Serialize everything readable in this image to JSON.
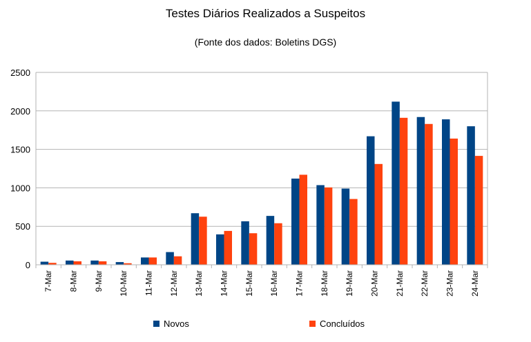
{
  "chart_data": {
    "type": "bar",
    "title": "Testes Diários Realizados a Suspeitos",
    "subtitle": "(Fonte dos dados: Boletins DGS)",
    "xlabel": "",
    "ylabel": "",
    "ylim": [
      0,
      2500
    ],
    "yticks": [
      0,
      500,
      1000,
      1500,
      2000,
      2500
    ],
    "grid": true,
    "legend_position": "bottom",
    "categories": [
      "7-Mar",
      "8-Mar",
      "9-Mar",
      "10-Mar",
      "11-Mar",
      "12-Mar",
      "13-Mar",
      "14-Mar",
      "15-Mar",
      "16-Mar",
      "17-Mar",
      "18-Mar",
      "19-Mar",
      "20-Mar",
      "21-Mar",
      "22-Mar",
      "23-Mar",
      "24-Mar"
    ],
    "series": [
      {
        "name": "Novos",
        "color": "#004586",
        "values": [
          40,
          55,
          55,
          35,
          95,
          165,
          670,
          395,
          565,
          635,
          1120,
          1035,
          990,
          1670,
          2120,
          1920,
          1890,
          1800
        ]
      },
      {
        "name": "Concluídos",
        "color": "#ff420e",
        "values": [
          25,
          45,
          45,
          20,
          95,
          110,
          625,
          440,
          410,
          540,
          1170,
          1005,
          855,
          1310,
          1910,
          1830,
          1640,
          1415
        ]
      }
    ]
  }
}
